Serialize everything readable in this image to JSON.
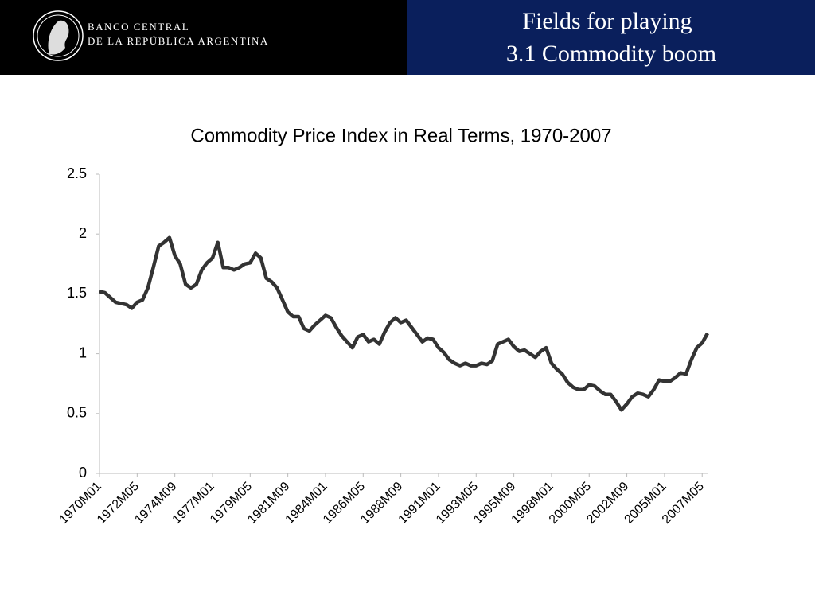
{
  "header": {
    "bank_line1": "BANCO CENTRAL",
    "bank_line2": "DE LA REPÚBLICA ARGENTINA",
    "title_line1": "Fields for playing",
    "title_line2": "3.1 Commodity boom"
  },
  "chart_data": {
    "type": "line",
    "title": "Commodity Price Index in Real Terms, 1970-2007",
    "color": "#333333",
    "categories": [
      "1970M01",
      null,
      null,
      null,
      null,
      null,
      null,
      "1972M05",
      null,
      null,
      null,
      null,
      null,
      null,
      "1974M09",
      null,
      null,
      null,
      null,
      null,
      null,
      "1977M01",
      null,
      null,
      null,
      null,
      null,
      null,
      "1979M05",
      null,
      null,
      null,
      null,
      null,
      null,
      "1981M09",
      null,
      null,
      null,
      null,
      null,
      null,
      "1984M01",
      null,
      null,
      null,
      null,
      null,
      null,
      "1986M05",
      null,
      null,
      null,
      null,
      null,
      null,
      "1988M09",
      null,
      null,
      null,
      null,
      null,
      null,
      "1991M01",
      null,
      null,
      null,
      null,
      null,
      null,
      "1993M05",
      null,
      null,
      null,
      null,
      null,
      null,
      "1995M09",
      null,
      null,
      null,
      null,
      null,
      null,
      "1998M01",
      null,
      null,
      null,
      null,
      null,
      null,
      "2000M05",
      null,
      null,
      null,
      null,
      null,
      null,
      "2002M09",
      null,
      null,
      null,
      null,
      null,
      null,
      "2005M01",
      null,
      null,
      null,
      null,
      null,
      null,
      "2007M05",
      null
    ],
    "values": [
      1.52,
      1.51,
      1.47,
      1.43,
      1.42,
      1.41,
      1.38,
      1.43,
      1.45,
      1.55,
      1.72,
      1.9,
      1.93,
      1.97,
      1.82,
      1.75,
      1.58,
      1.55,
      1.58,
      1.7,
      1.76,
      1.8,
      1.93,
      1.72,
      1.72,
      1.7,
      1.72,
      1.75,
      1.76,
      1.84,
      1.8,
      1.63,
      1.6,
      1.55,
      1.45,
      1.35,
      1.31,
      1.31,
      1.21,
      1.19,
      1.24,
      1.28,
      1.32,
      1.3,
      1.22,
      1.15,
      1.1,
      1.05,
      1.14,
      1.16,
      1.1,
      1.12,
      1.08,
      1.18,
      1.26,
      1.3,
      1.26,
      1.28,
      1.22,
      1.16,
      1.1,
      1.13,
      1.12,
      1.05,
      1.01,
      0.95,
      0.92,
      0.9,
      0.92,
      0.9,
      0.9,
      0.92,
      0.91,
      0.94,
      1.08,
      1.1,
      1.12,
      1.06,
      1.02,
      1.03,
      1.0,
      0.97,
      1.02,
      1.05,
      0.92,
      0.87,
      0.83,
      0.76,
      0.72,
      0.7,
      0.7,
      0.74,
      0.73,
      0.69,
      0.66,
      0.66,
      0.6,
      0.53,
      0.58,
      0.64,
      0.67,
      0.66,
      0.64,
      0.7,
      0.78,
      0.77,
      0.77,
      0.8,
      0.84,
      0.83,
      0.95,
      1.05,
      1.09,
      1.17
    ],
    "ylim": [
      0,
      2.5
    ],
    "yticks": [
      0,
      0.5,
      1,
      1.5,
      2,
      2.5
    ],
    "grid": false
  }
}
